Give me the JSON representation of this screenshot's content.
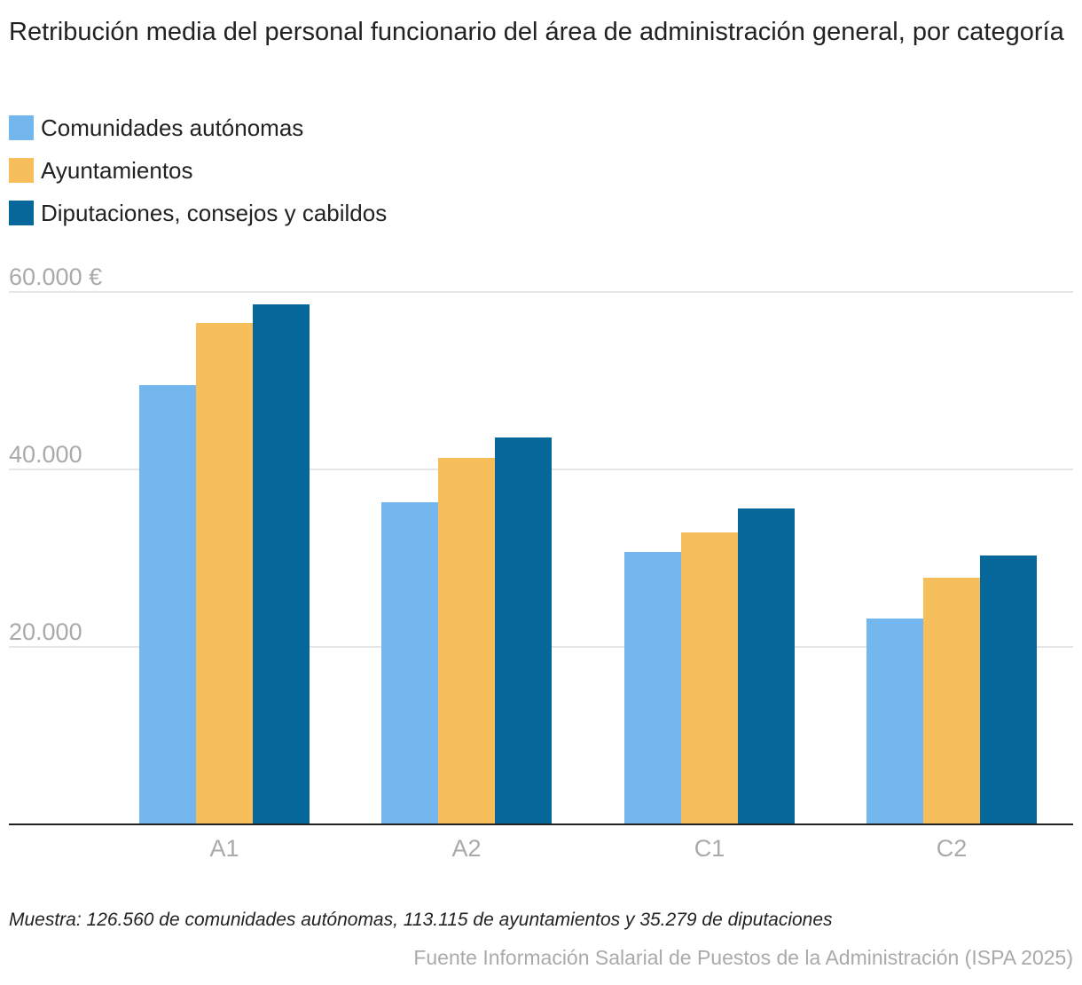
{
  "chart_data": {
    "type": "bar",
    "title": "Retribución media del personal funcionario del área de administración general, por categoría",
    "categories": [
      "A1",
      "A2",
      "C1",
      "C2"
    ],
    "series": [
      {
        "name": "Comunidades autónomas",
        "color": "#74b7ee",
        "values": [
          49500,
          36300,
          30700,
          23200
        ]
      },
      {
        "name": "Ayuntamientos",
        "color": "#f7bf5b",
        "values": [
          56500,
          41300,
          32900,
          27800
        ]
      },
      {
        "name": "Diputaciones, consejos y cabildos",
        "color": "#06689a",
        "values": [
          58600,
          43600,
          35600,
          30300
        ]
      }
    ],
    "yticks": [
      {
        "value": 20000,
        "label": "20.000"
      },
      {
        "value": 40000,
        "label": "40.000"
      },
      {
        "value": 60000,
        "label": "60.000 €"
      }
    ],
    "ylim": [
      0,
      60000
    ],
    "grid": true,
    "legend": "top-left",
    "note": "Muestra: 126.560 de comunidades autónomas, 113.115 de ayuntamientos y 35.279 de diputaciones",
    "source": "Fuente Información Salarial de Puestos de la Administración (ISPA 2025)"
  }
}
